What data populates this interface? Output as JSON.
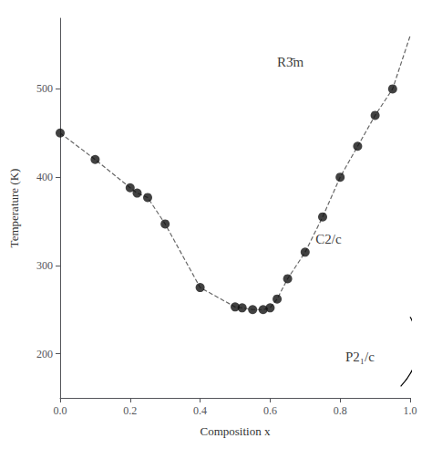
{
  "chart_data": {
    "type": "line",
    "xlabel": "Composition x",
    "ylabel": "Temperature (K)",
    "xlim": [
      0.0,
      1.0
    ],
    "ylim": [
      150,
      580
    ],
    "xticks": [
      {
        "value": 0.0,
        "label": "0.0"
      },
      0.2,
      0.4,
      0.6,
      0.8,
      {
        "value": 1.0,
        "label": "1.0"
      }
    ],
    "yticks": [
      200,
      300,
      400,
      500
    ],
    "grid": false,
    "series": [
      {
        "type": "line",
        "color": "#666666",
        "line_style": "dashed",
        "marker": "none",
        "x": [
          0.0,
          0.1,
          0.2,
          0.22,
          0.25,
          0.3,
          0.4,
          0.5,
          0.52,
          0.55,
          0.58,
          0.6,
          0.62,
          0.65,
          0.7,
          0.75,
          0.8,
          0.85,
          0.9,
          0.95,
          1.0
        ],
        "values": [
          450,
          420,
          388,
          382,
          377,
          347,
          275,
          253,
          252,
          250,
          250,
          252,
          262,
          285,
          315,
          355,
          400,
          435,
          470,
          500,
          560
        ]
      },
      {
        "type": "scatter",
        "color": "#111111",
        "marker": "circle",
        "x": [
          0.0,
          0.1,
          0.2,
          0.22,
          0.25,
          0.3,
          0.4,
          0.5,
          0.52,
          0.55,
          0.58,
          0.6,
          0.62,
          0.65,
          0.7,
          0.75,
          0.8,
          0.85,
          0.9,
          0.95
        ],
        "values": [
          450,
          420,
          388,
          382,
          377,
          347,
          275,
          253,
          252,
          250,
          250,
          252,
          262,
          285,
          315,
          355,
          400,
          435,
          470,
          500
        ]
      },
      {
        "type": "scatter",
        "color": "#111111",
        "marker": "emptyCircle",
        "x": [
          1.0
        ],
        "values": [
          248
        ]
      }
    ],
    "annotations": [
      {
        "text": "R3̄m",
        "x": 0.62,
        "y": 530
      },
      {
        "text": "C2/c",
        "x": 0.73,
        "y": 330
      },
      {
        "text": "P2₁/c",
        "x": 0.815,
        "y": 196
      }
    ],
    "connector": {
      "from": [
        1.0,
        242
      ],
      "to": [
        0.973,
        163
      ],
      "color": "#000000"
    }
  }
}
